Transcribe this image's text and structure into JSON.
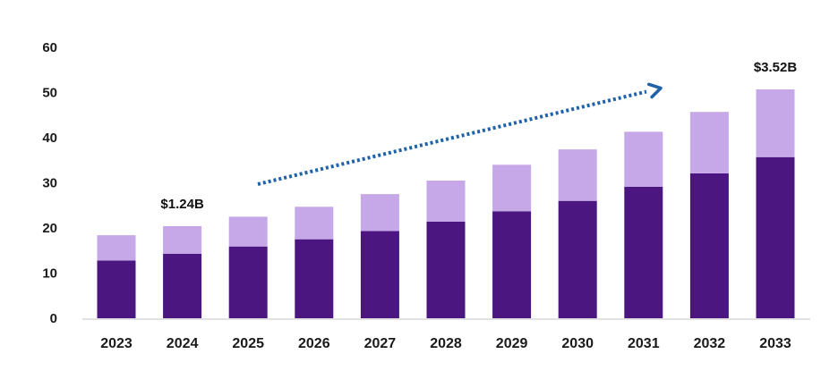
{
  "chart_data": {
    "type": "bar",
    "stacked": true,
    "categories": [
      "2023",
      "2024",
      "2025",
      "2026",
      "2027",
      "2028",
      "2029",
      "2030",
      "2031",
      "2032",
      "2033"
    ],
    "series": [
      {
        "values": [
          12.8,
          14.3,
          15.9,
          17.5,
          19.3,
          21.4,
          23.7,
          26.0,
          29.1,
          32.1,
          35.7
        ]
      },
      {
        "values": [
          5.6,
          6.1,
          6.6,
          7.2,
          8.2,
          9.1,
          10.3,
          11.4,
          12.2,
          13.6,
          15.0
        ]
      }
    ],
    "colors": [
      "#4b1680",
      "#c6a8e8"
    ],
    "yticks": [
      0,
      10,
      20,
      30,
      40,
      50,
      60
    ],
    "ylim": [
      0,
      66
    ],
    "annotations": [
      {
        "text": "$1.24B",
        "category": "2024"
      },
      {
        "text": "$3.52B",
        "category": "2033"
      }
    ],
    "trend_arrow_color": "#1f62a8",
    "grid": false,
    "legend": "none"
  }
}
